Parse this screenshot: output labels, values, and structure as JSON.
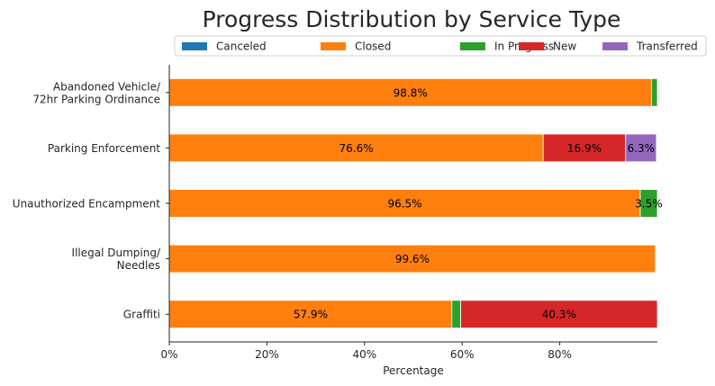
{
  "chart_data": {
    "type": "bar",
    "orientation": "horizontal",
    "stacked": true,
    "title": "Progress Distribution by Service Type",
    "xlabel": "Percentage",
    "ylabel": "",
    "xlim": [
      0,
      100
    ],
    "xticks": [
      {
        "value": 0,
        "label": "0%"
      },
      {
        "value": 20,
        "label": "20%"
      },
      {
        "value": 40,
        "label": "40%"
      },
      {
        "value": 60,
        "label": "60%"
      },
      {
        "value": 80,
        "label": "80%"
      }
    ],
    "grid": false,
    "legend_position": "top",
    "categories": [
      [
        "Abandoned Vehicle/",
        "72hr Parking Ordinance"
      ],
      [
        "Parking Enforcement"
      ],
      [
        "Unauthorized Encampment"
      ],
      [
        "Illegal Dumping/",
        "Needles"
      ],
      [
        "Graffiti"
      ]
    ],
    "series": [
      {
        "name": "Canceled",
        "color": "#1f77b4",
        "values": [
          0.0,
          0.0,
          0.0,
          0.0,
          0.0
        ],
        "labels": [
          "",
          "",
          "",
          "",
          ""
        ]
      },
      {
        "name": "Closed",
        "color": "#ff7f0e",
        "values": [
          98.8,
          76.6,
          96.5,
          99.6,
          57.9
        ],
        "labels": [
          "98.8%",
          "76.6%",
          "96.5%",
          "99.6%",
          "57.9%"
        ]
      },
      {
        "name": "In Progress",
        "color": "#2ca02c",
        "values": [
          1.2,
          0.0,
          3.5,
          0.0,
          1.8
        ],
        "labels": [
          "",
          "",
          "3.5%",
          "",
          ""
        ]
      },
      {
        "name": "New",
        "color": "#d62728",
        "values": [
          0.0,
          16.9,
          0.0,
          0.0,
          40.3
        ],
        "labels": [
          "",
          "16.9%",
          "",
          "",
          "40.3%"
        ]
      },
      {
        "name": "Transferred",
        "color": "#9467bd",
        "values": [
          0.0,
          6.3,
          0.0,
          0.0,
          0.0
        ],
        "labels": [
          "",
          "6.3%",
          "",
          "",
          ""
        ]
      }
    ]
  }
}
